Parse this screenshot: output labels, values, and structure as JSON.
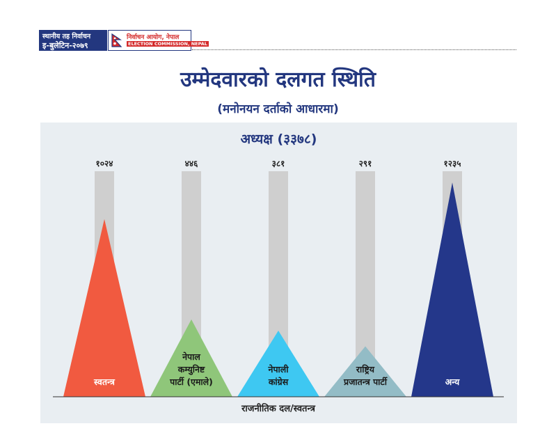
{
  "header": {
    "line1": "स्थानीय तह निर्वाचन",
    "line2": "इ-बुलेटिन-२०७९",
    "org_line1": "निर्वाचन आयोग, नेपाल",
    "org_line2": "ELECTION COMMISSION, NEPAL",
    "flag_icon": "nepal-flag-icon",
    "brand_color": "#23377f",
    "accent_color": "#d42b2b"
  },
  "title": "उम्मेदवारको दलगत स्थिति",
  "subtitle": "(मनोनयन दर्ताको आधारमा)",
  "chart_data": {
    "type": "bar",
    "title": "अध्यक्ष (३३७८)",
    "xlabel": "राजनीतिक दल/स्वतन्त्र",
    "ylim": [
      0,
      1300
    ],
    "categories": [
      {
        "label_lines": [
          "स्वतन्त्र"
        ],
        "color": "#f15a40",
        "text_color": "#ffffff"
      },
      {
        "label_lines": [
          "नेपाल",
          "कम्युनिष्ट",
          "पार्टी (एमाले)"
        ],
        "color": "#8fc67a",
        "text_color": "#1a1a1a"
      },
      {
        "label_lines": [
          "नेपाली",
          "कांग्रेस"
        ],
        "color": "#3ec8f2",
        "text_color": "#1a1a1a"
      },
      {
        "label_lines": [
          "राष्ट्रिय",
          "प्रजातन्त्र पार्टी"
        ],
        "color": "#93bcc6",
        "text_color": "#1a1a1a"
      },
      {
        "label_lines": [
          "अन्य"
        ],
        "color": "#24378a",
        "text_color": "#ffffff"
      }
    ],
    "values": [
      1024,
      446,
      381,
      291,
      1235
    ],
    "value_labels": [
      "१०२४",
      "४४६",
      "३८१",
      "२९१",
      "१२३५"
    ],
    "track_color": "#cfcfcf"
  }
}
